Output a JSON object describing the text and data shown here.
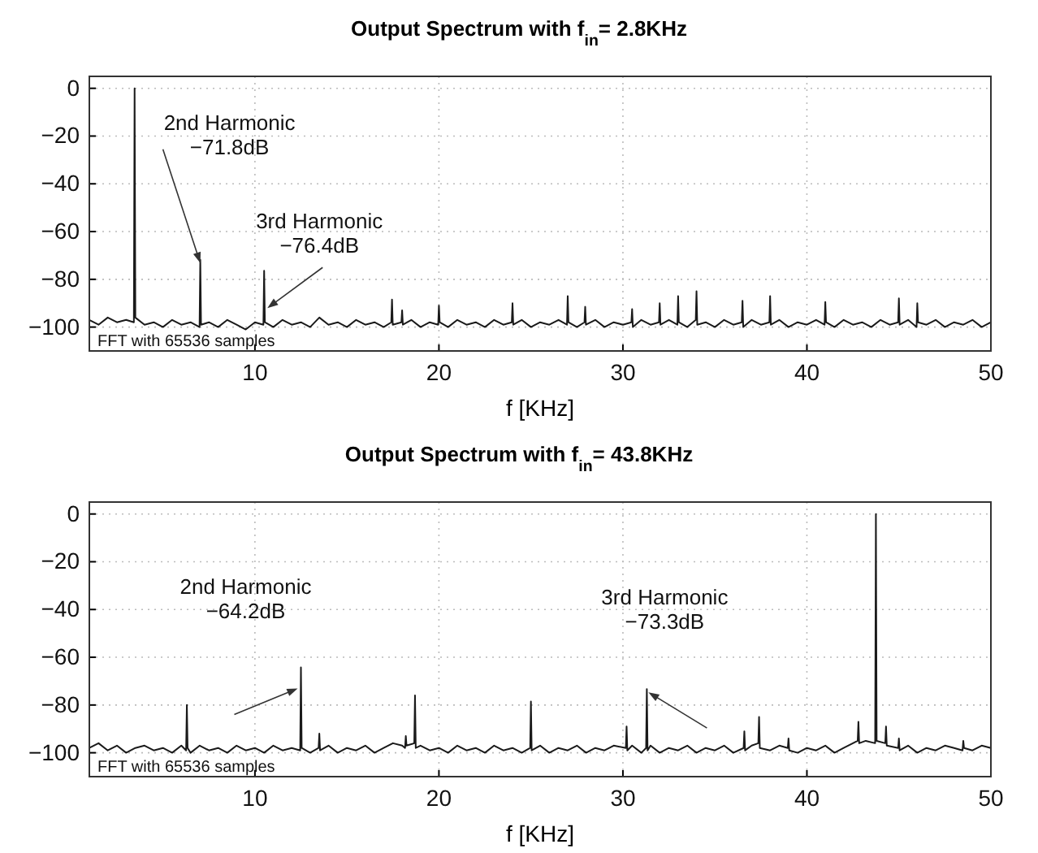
{
  "chart_data": [
    {
      "type": "line",
      "title": "Output Spectrum with f$_{in}$= 2.8KHz",
      "xlabel": "f [KHz]",
      "color": "#1a1a1a",
      "xlim": [
        1,
        50
      ],
      "ylim": [
        -110,
        5
      ],
      "xticks": [
        10,
        20,
        30,
        40,
        50
      ],
      "yticks": [
        0,
        -20,
        -40,
        -60,
        -80,
        -100
      ],
      "grid": true,
      "x": [
        1,
        1.5,
        2,
        2.5,
        3,
        3.42,
        3.46,
        3.5,
        4,
        4.5,
        5,
        5.5,
        6,
        6.5,
        6.99,
        7.03,
        7.07,
        7.5,
        8,
        8.5,
        9,
        9.5,
        10,
        10.46,
        10.5,
        10.54,
        11,
        11.5,
        12,
        12.5,
        13,
        13.5,
        14,
        14.5,
        15,
        15.5,
        16,
        16.5,
        17,
        17.41,
        17.45,
        17.49,
        17.96,
        18,
        18.04,
        18.5,
        19,
        19.5,
        19.96,
        20,
        20.04,
        20.5,
        21,
        21.5,
        22,
        22.5,
        23,
        23.5,
        23.96,
        24,
        24.04,
        24.5,
        25,
        25.5,
        26,
        26.5,
        26.96,
        27,
        27.04,
        27.5,
        27.91,
        27.95,
        27.99,
        28.5,
        29,
        29.5,
        30,
        30.46,
        30.5,
        30.54,
        31,
        31.5,
        31.96,
        32,
        32.04,
        32.5,
        32.96,
        33,
        33.04,
        33.5,
        33.96,
        34,
        34.04,
        34.5,
        35,
        35.5,
        36,
        36.46,
        36.5,
        36.54,
        37,
        37.5,
        37.96,
        38,
        38.04,
        38.5,
        39,
        39.5,
        40,
        40.5,
        40.96,
        41,
        41.04,
        41.5,
        42,
        42.5,
        43,
        43.5,
        44,
        44.5,
        44.96,
        45,
        45.04,
        45.5,
        45.96,
        46,
        46.04,
        46.5,
        47,
        47.5,
        48,
        48.5,
        49,
        49.5,
        50
      ],
      "values": [
        -97,
        -99,
        -96,
        -98,
        -97,
        -98,
        0,
        -96,
        -99,
        -98,
        -100,
        -97,
        -99,
        -98,
        -100,
        -71.8,
        -99,
        -98,
        -100,
        -97,
        -99,
        -101,
        -98,
        -99,
        -76.4,
        -98,
        -100,
        -97,
        -99,
        -98,
        -100,
        -96,
        -99,
        -98,
        -100,
        -97,
        -99,
        -98,
        -100,
        -98,
        -88.5,
        -99,
        -98,
        -93,
        -99,
        -97,
        -100,
        -98,
        -99,
        -91,
        -98,
        -100,
        -97,
        -99,
        -98,
        -100,
        -97,
        -99,
        -98,
        -90,
        -99,
        -97,
        -100,
        -98,
        -99,
        -97,
        -99,
        -87,
        -98,
        -100,
        -98,
        -91.5,
        -99,
        -97,
        -100,
        -98,
        -99,
        -98,
        -92.5,
        -100,
        -97,
        -99,
        -98,
        -90,
        -99,
        -97,
        -99,
        -87,
        -98,
        -100,
        -97,
        -85,
        -99,
        -98,
        -100,
        -97,
        -99,
        -98,
        -89,
        -100,
        -97,
        -99,
        -98,
        -87,
        -99,
        -97,
        -100,
        -98,
        -99,
        -97,
        -99,
        -89.5,
        -98,
        -100,
        -97,
        -99,
        -98,
        -100,
        -97,
        -99,
        -98,
        -88,
        -99,
        -97,
        -100,
        -90,
        -98,
        -99,
        -97,
        -100,
        -98,
        -99,
        -97,
        -100,
        -98
      ],
      "annotations": [
        {
          "text": "2nd Harmonic\n−71.8dB",
          "x": 7.03,
          "y": -71.8
        },
        {
          "text": "3rd Harmonic\n−76.4dB",
          "x": 10.5,
          "y": -76.4
        },
        "FFT with 65536 samples"
      ]
    },
    {
      "type": "line",
      "title": "Output Spectrum with f$_{in}$= 43.8KHz",
      "xlabel": "f [KHz]",
      "color": "#1a1a1a",
      "xlim": [
        1,
        50
      ],
      "ylim": [
        -110,
        5
      ],
      "xticks": [
        10,
        20,
        30,
        40,
        50
      ],
      "yticks": [
        0,
        -20,
        -40,
        -60,
        -80,
        -100
      ],
      "grid": true,
      "x": [
        1,
        1.5,
        2,
        2.5,
        3,
        3.5,
        4,
        4.5,
        5,
        5.5,
        6,
        6.26,
        6.3,
        6.34,
        6.5,
        7,
        7.5,
        8,
        8.5,
        9,
        9.5,
        10,
        10.5,
        11,
        11.5,
        12,
        12.46,
        12.5,
        12.54,
        13,
        13.46,
        13.5,
        13.54,
        14,
        14.5,
        15,
        15.5,
        16,
        16.5,
        17,
        17.5,
        18,
        18.16,
        18.2,
        18.24,
        18.66,
        18.7,
        18.74,
        19,
        19.5,
        20,
        20.5,
        21,
        21.5,
        22,
        22.5,
        23,
        23.5,
        24,
        24.5,
        24.96,
        25,
        25.04,
        25.5,
        26,
        26.5,
        27,
        27.5,
        28,
        28.5,
        29,
        29.5,
        30.16,
        30.2,
        30.24,
        30.5,
        31,
        31.26,
        31.3,
        31.34,
        31.5,
        32,
        32.5,
        33,
        33.5,
        34,
        34.5,
        35,
        35.5,
        36,
        36.56,
        36.6,
        36.64,
        37,
        37.36,
        37.4,
        37.44,
        38,
        38.5,
        38.96,
        39,
        39.04,
        39.5,
        40,
        40.5,
        41,
        41.5,
        42,
        42.5,
        42.76,
        42.8,
        42.84,
        43.2,
        43.71,
        43.75,
        43.79,
        44.26,
        44.3,
        44.34,
        44.96,
        45,
        45.04,
        45.5,
        46,
        46.5,
        47,
        47.5,
        48,
        48.46,
        48.5,
        48.54,
        49,
        49.5,
        50
      ],
      "values": [
        -98,
        -96,
        -99,
        -97,
        -100,
        -98,
        -97,
        -99,
        -98,
        -100,
        -97,
        -99,
        -80,
        -98,
        -100,
        -97,
        -99,
        -98,
        -100,
        -97,
        -99,
        -98,
        -100,
        -97,
        -99,
        -98,
        -99,
        -64.2,
        -98,
        -100,
        -98,
        -92,
        -99,
        -97,
        -100,
        -98,
        -99,
        -97,
        -100,
        -98,
        -96,
        -97,
        -98,
        -93,
        -97,
        -96,
        -76,
        -98,
        -97,
        -99,
        -98,
        -100,
        -97,
        -99,
        -98,
        -100,
        -97,
        -99,
        -98,
        -100,
        -98,
        -78.5,
        -99,
        -97,
        -100,
        -98,
        -99,
        -97,
        -100,
        -98,
        -99,
        -97,
        -98,
        -89,
        -99,
        -97,
        -100,
        -98,
        -73.3,
        -99,
        -97,
        -100,
        -98,
        -99,
        -97,
        -100,
        -98,
        -99,
        -97,
        -100,
        -98,
        -91,
        -99,
        -97,
        -96,
        -85,
        -98,
        -99,
        -97,
        -98,
        -94,
        -99,
        -100,
        -98,
        -99,
        -97,
        -100,
        -98,
        -96,
        -95,
        -87,
        -96,
        -95,
        -96,
        0,
        -95,
        -96,
        -89,
        -97,
        -98,
        -94,
        -99,
        -97,
        -100,
        -98,
        -99,
        -97,
        -98,
        -99,
        -95,
        -98,
        -99,
        -97,
        -98
      ],
      "annotations": [
        {
          "text": "2nd Harmonic\n−64.2dB",
          "x": 12.5,
          "y": -64.2
        },
        {
          "text": "3rd Harmonic\n−73.3dB",
          "x": 31.3,
          "y": -73.3
        },
        "FFT with 65536 samples"
      ]
    }
  ]
}
